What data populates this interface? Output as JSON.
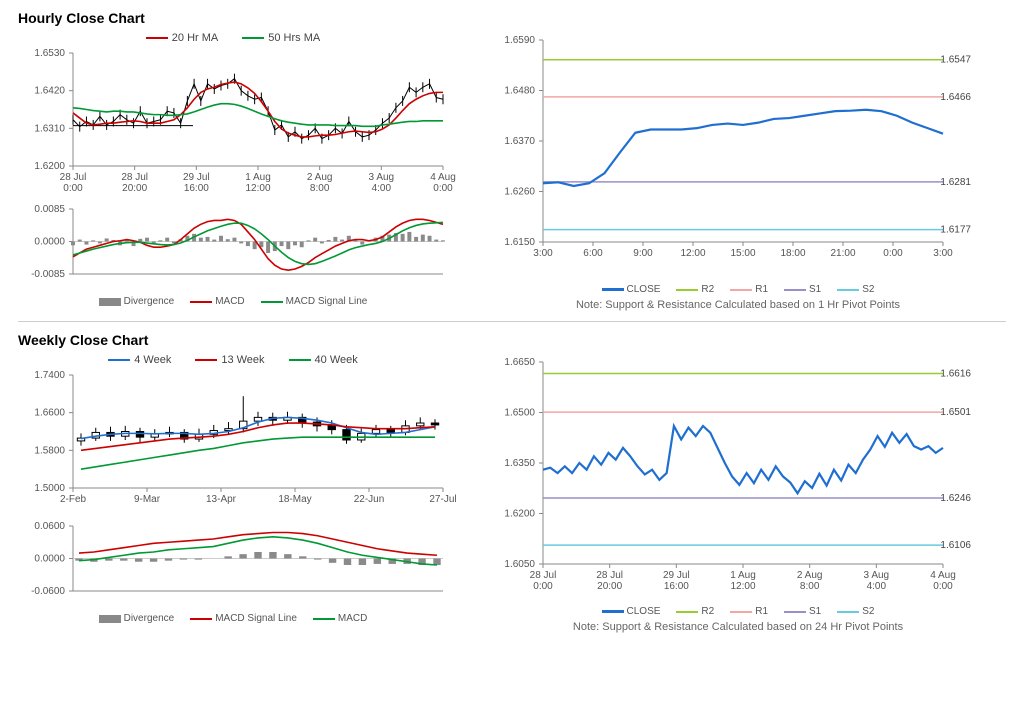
{
  "sections": {
    "hourly": {
      "title": "Hourly Close Chart"
    },
    "weekly": {
      "title": "Weekly Close Chart"
    }
  },
  "colors": {
    "axis": "#888888",
    "grid": "#e8e8e8",
    "price_black": "#000000",
    "ma_red": "#cc0000",
    "ma_green": "#009933",
    "ma_blue": "#1f6fd1",
    "divergence_bar": "#8a8a8a",
    "close_blue": "#1f6fd1",
    "r2_green": "#99cc33",
    "r1_pink": "#f2a6a6",
    "s1_purple": "#9a8fc9",
    "s2_cyan": "#66cce0"
  },
  "hourly_main": {
    "type": "line+candle",
    "ylim": [
      1.62,
      1.653
    ],
    "yticks": [
      1.62,
      1.631,
      1.642,
      1.653
    ],
    "xticks": [
      "28 Jul\n0:00",
      "28 Jul\n20:00",
      "29 Jul\n16:00",
      "1 Aug\n12:00",
      "2 Aug\n8:00",
      "3 Aug\n4:00",
      "4 Aug\n0:00"
    ],
    "legend": [
      {
        "label": "20 Hr MA",
        "color": "#cc0000"
      },
      {
        "label": "50 Hrs MA",
        "color": "#009933"
      }
    ],
    "price_y": [
      1.6335,
      1.6315,
      1.633,
      1.632,
      1.6345,
      1.632,
      1.633,
      1.635,
      1.6335,
      1.6325,
      1.636,
      1.6325,
      1.633,
      1.6335,
      1.636,
      1.6355,
      1.6325,
      1.639,
      1.644,
      1.639,
      1.644,
      1.6425,
      1.6435,
      1.644,
      1.6455,
      1.642,
      1.6405,
      1.6395,
      1.64,
      1.636,
      1.6305,
      1.632,
      1.6285,
      1.63,
      1.628,
      1.629,
      1.631,
      1.628,
      1.629,
      1.631,
      1.6295,
      1.633,
      1.63,
      1.6285,
      1.629,
      1.6305,
      1.6325,
      1.634,
      1.637,
      1.639,
      1.643,
      1.6415,
      1.643,
      1.644,
      1.64,
      1.6395
    ],
    "ma20_y": [
      1.6355,
      1.634,
      1.6325,
      1.632,
      1.6322,
      1.6325,
      1.6325,
      1.6328,
      1.633,
      1.6332,
      1.633,
      1.6325,
      1.6325,
      1.6325,
      1.633,
      1.6335,
      1.635,
      1.637,
      1.6395,
      1.6415,
      1.6425,
      1.643,
      1.6438,
      1.6442,
      1.6445,
      1.644,
      1.6428,
      1.6412,
      1.6388,
      1.636,
      1.633,
      1.6308,
      1.6296,
      1.629,
      1.6285,
      1.6285,
      1.6288,
      1.629,
      1.629,
      1.6292,
      1.6296,
      1.63,
      1.6302,
      1.63,
      1.6298,
      1.63,
      1.6308,
      1.632,
      1.634,
      1.6362,
      1.6382,
      1.6395,
      1.6405,
      1.6412,
      1.6415,
      1.6415
    ],
    "ma50_y": [
      1.637,
      1.6368,
      1.6365,
      1.6362,
      1.636,
      1.6358,
      1.636,
      1.636,
      1.6358,
      1.6358,
      1.6355,
      1.6352,
      1.635,
      1.635,
      1.6348,
      1.6348,
      1.635,
      1.6352,
      1.6358,
      1.6365,
      1.6372,
      1.6378,
      1.6382,
      1.6382,
      1.638,
      1.6375,
      1.6368,
      1.636,
      1.6352,
      1.6345,
      1.6338,
      1.6332,
      1.6328,
      1.6325,
      1.6322,
      1.632,
      1.632,
      1.632,
      1.632,
      1.6318,
      1.6318,
      1.6318,
      1.6318,
      1.6316,
      1.6316,
      1.6316,
      1.632,
      1.6322,
      1.6325,
      1.6328,
      1.633,
      1.633,
      1.6332,
      1.6332,
      1.6332,
      1.6332
    ],
    "hline_y": 1.6318
  },
  "hourly_macd": {
    "type": "macd",
    "ylim": [
      -0.0085,
      0.0085
    ],
    "yticks": [
      -0.0085,
      0.0,
      0.0085
    ],
    "legend": [
      {
        "label": "Divergence",
        "type": "bar",
        "color": "#8a8a8a"
      },
      {
        "label": "MACD",
        "type": "line",
        "color": "#cc0000"
      },
      {
        "label": "MACD Signal Line",
        "type": "line",
        "color": "#009933"
      }
    ],
    "div": [
      -0.001,
      0.0005,
      -0.0008,
      0.0003,
      -0.0005,
      0.0008,
      0.0004,
      -0.001,
      0.0006,
      -0.0012,
      0.0007,
      0.001,
      -0.0006,
      0.0003,
      0.001,
      -0.0005,
      0.0006,
      0.0015,
      0.002,
      0.001,
      0.0012,
      0.0005,
      0.0015,
      0.0006,
      0.001,
      -0.0005,
      -0.0012,
      -0.002,
      -0.0015,
      -0.003,
      -0.0025,
      -0.0012,
      -0.002,
      -0.001,
      -0.0015,
      0.0003,
      0.001,
      -0.0005,
      0.0004,
      0.0012,
      0.0005,
      0.0015,
      0.0003,
      -0.0008,
      0.0002,
      0.001,
      0.0015,
      0.0018,
      0.0022,
      0.002,
      0.0025,
      0.0012,
      0.0018,
      0.0015,
      0.0005,
      0.0003
    ],
    "macd": [
      -0.004,
      -0.003,
      -0.002,
      -0.0015,
      -0.001,
      -0.0005,
      0.0,
      0.0002,
      0.0005,
      0.0002,
      -0.0002,
      -0.001,
      -0.0015,
      -0.0015,
      -0.0012,
      -0.0008,
      0.0005,
      0.002,
      0.0035,
      0.0045,
      0.0052,
      0.0055,
      0.0055,
      0.0058,
      0.0055,
      0.0045,
      0.0025,
      0.0005,
      -0.002,
      -0.0045,
      -0.0062,
      -0.0072,
      -0.0075,
      -0.0072,
      -0.0065,
      -0.0055,
      -0.0042,
      -0.0032,
      -0.0022,
      -0.0012,
      -0.0005,
      0.0002,
      0.0005,
      0.0005,
      0.0002,
      0.0005,
      0.0012,
      0.0025,
      0.0038,
      0.0048,
      0.0055,
      0.0058,
      0.0058,
      0.0055,
      0.005,
      0.0045
    ],
    "signal": [
      -0.0035,
      -0.003,
      -0.0025,
      -0.002,
      -0.0016,
      -0.0012,
      -0.0008,
      -0.0005,
      -0.0003,
      -0.0002,
      -0.0002,
      -0.0004,
      -0.0006,
      -0.0008,
      -0.0009,
      -0.0008,
      -0.0004,
      0.0003,
      0.0012,
      0.002,
      0.0028,
      0.0034,
      0.004,
      0.0045,
      0.0048,
      0.0048,
      0.0042,
      0.0033,
      0.002,
      0.0005,
      -0.0012,
      -0.0028,
      -0.0042,
      -0.0052,
      -0.0058,
      -0.006,
      -0.0058,
      -0.0052,
      -0.0045,
      -0.0038,
      -0.003,
      -0.0022,
      -0.0016,
      -0.0012,
      -0.0008,
      -0.0005,
      0.0,
      0.0008,
      0.0018,
      0.0028,
      0.0036,
      0.0042,
      0.0046,
      0.0048,
      0.0049,
      0.005
    ]
  },
  "hourly_sr": {
    "type": "support-resistance",
    "ylim": [
      1.615,
      1.659
    ],
    "yticks": [
      1.615,
      1.626,
      1.637,
      1.648,
      1.659
    ],
    "xticks": [
      "3:00",
      "6:00",
      "9:00",
      "12:00",
      "15:00",
      "18:00",
      "21:00",
      "0:00",
      "3:00"
    ],
    "levels": {
      "R2": {
        "value": 1.6547,
        "color": "#99cc33"
      },
      "R1": {
        "value": 1.6466,
        "color": "#f2a6a6"
      },
      "S1": {
        "value": 1.6281,
        "color": "#9a8fc9"
      },
      "S2": {
        "value": 1.6177,
        "color": "#66cce0"
      }
    },
    "close_y": [
      1.6278,
      1.628,
      1.6272,
      1.6278,
      1.63,
      1.6345,
      1.6388,
      1.6395,
      1.6395,
      1.6395,
      1.6398,
      1.6405,
      1.6408,
      1.6405,
      1.641,
      1.6418,
      1.642,
      1.6425,
      1.643,
      1.6435,
      1.6436,
      1.6438,
      1.6435,
      1.6425,
      1.641,
      1.6398,
      1.6386
    ],
    "legend": [
      "CLOSE",
      "R2",
      "R1",
      "S1",
      "S2"
    ],
    "note": "Note: Support & Resistance Calculated based on 1 Hr Pivot Points"
  },
  "weekly_main": {
    "type": "candle+ma",
    "ylim": [
      1.5,
      1.74
    ],
    "yticks": [
      1.5,
      1.58,
      1.66,
      1.74
    ],
    "xticks": [
      "2-Feb",
      "9-Mar",
      "13-Apr",
      "18-May",
      "22-Jun",
      "27-Jul"
    ],
    "legend": [
      {
        "label": "4 Week",
        "color": "#1f6fd1"
      },
      {
        "label": "13 Week",
        "color": "#cc0000"
      },
      {
        "label": "40 Week",
        "color": "#009933"
      }
    ],
    "candles": [
      {
        "o": 1.6,
        "c": 1.606,
        "h": 1.616,
        "l": 1.59
      },
      {
        "o": 1.606,
        "c": 1.618,
        "h": 1.628,
        "l": 1.6
      },
      {
        "o": 1.618,
        "c": 1.61,
        "h": 1.63,
        "l": 1.6
      },
      {
        "o": 1.61,
        "c": 1.62,
        "h": 1.632,
        "l": 1.602
      },
      {
        "o": 1.62,
        "c": 1.608,
        "h": 1.628,
        "l": 1.596
      },
      {
        "o": 1.608,
        "c": 1.615,
        "h": 1.625,
        "l": 1.6
      },
      {
        "o": 1.615,
        "c": 1.618,
        "h": 1.63,
        "l": 1.608
      },
      {
        "o": 1.618,
        "c": 1.604,
        "h": 1.625,
        "l": 1.596
      },
      {
        "o": 1.604,
        "c": 1.614,
        "h": 1.626,
        "l": 1.598
      },
      {
        "o": 1.614,
        "c": 1.622,
        "h": 1.634,
        "l": 1.606
      },
      {
        "o": 1.622,
        "c": 1.626,
        "h": 1.64,
        "l": 1.614
      },
      {
        "o": 1.626,
        "c": 1.642,
        "h": 1.695,
        "l": 1.618
      },
      {
        "o": 1.642,
        "c": 1.65,
        "h": 1.662,
        "l": 1.632
      },
      {
        "o": 1.65,
        "c": 1.644,
        "h": 1.66,
        "l": 1.632
      },
      {
        "o": 1.644,
        "c": 1.65,
        "h": 1.662,
        "l": 1.636
      },
      {
        "o": 1.65,
        "c": 1.64,
        "h": 1.658,
        "l": 1.628
      },
      {
        "o": 1.64,
        "c": 1.632,
        "h": 1.65,
        "l": 1.62
      },
      {
        "o": 1.632,
        "c": 1.624,
        "h": 1.644,
        "l": 1.614
      },
      {
        "o": 1.624,
        "c": 1.602,
        "h": 1.634,
        "l": 1.594
      },
      {
        "o": 1.602,
        "c": 1.616,
        "h": 1.626,
        "l": 1.596
      },
      {
        "o": 1.616,
        "c": 1.624,
        "h": 1.634,
        "l": 1.608
      },
      {
        "o": 1.624,
        "c": 1.618,
        "h": 1.632,
        "l": 1.608
      },
      {
        "o": 1.618,
        "c": 1.632,
        "h": 1.644,
        "l": 1.612
      },
      {
        "o": 1.632,
        "c": 1.638,
        "h": 1.65,
        "l": 1.624
      },
      {
        "o": 1.638,
        "c": 1.634,
        "h": 1.646,
        "l": 1.624
      }
    ],
    "ma4": [
      1.605,
      1.61,
      1.614,
      1.616,
      1.616,
      1.615,
      1.616,
      1.616,
      1.614,
      1.616,
      1.62,
      1.628,
      1.64,
      1.648,
      1.65,
      1.648,
      1.644,
      1.638,
      1.628,
      1.618,
      1.614,
      1.616,
      1.618,
      1.624,
      1.63
    ],
    "ma13": [
      1.58,
      1.584,
      1.588,
      1.592,
      1.596,
      1.6,
      1.604,
      1.606,
      1.608,
      1.61,
      1.614,
      1.62,
      1.628,
      1.634,
      1.638,
      1.638,
      1.636,
      1.634,
      1.63,
      1.628,
      1.626,
      1.626,
      1.626,
      1.628,
      1.63
    ],
    "ma40": [
      1.54,
      1.545,
      1.55,
      1.555,
      1.56,
      1.565,
      1.57,
      1.575,
      1.58,
      1.584,
      1.59,
      1.596,
      1.6,
      1.604,
      1.606,
      1.608,
      1.608,
      1.608,
      1.608,
      1.608,
      1.608,
      1.608,
      1.608,
      1.608,
      1.608
    ]
  },
  "weekly_macd": {
    "type": "macd",
    "ylim": [
      -0.06,
      0.06
    ],
    "yticks": [
      -0.06,
      0.0,
      0.06
    ],
    "legend": [
      {
        "label": "Divergence",
        "type": "bar",
        "color": "#8a8a8a"
      },
      {
        "label": "MACD Signal Line",
        "type": "line",
        "color": "#cc0000"
      },
      {
        "label": "MACD",
        "type": "line",
        "color": "#009933"
      }
    ],
    "div": [
      -0.004,
      -0.006,
      -0.004,
      -0.004,
      -0.006,
      -0.006,
      -0.004,
      -0.002,
      -0.002,
      0.0,
      0.004,
      0.008,
      0.012,
      0.012,
      0.008,
      0.004,
      -0.002,
      -0.008,
      -0.012,
      -0.012,
      -0.01,
      -0.01,
      -0.01,
      -0.012,
      -0.012
    ],
    "macd": [
      -0.004,
      -0.002,
      0.002,
      0.006,
      0.01,
      0.012,
      0.016,
      0.018,
      0.02,
      0.022,
      0.028,
      0.034,
      0.038,
      0.04,
      0.038,
      0.034,
      0.028,
      0.02,
      0.012,
      0.006,
      0.002,
      -0.002,
      -0.006,
      -0.01,
      -0.012
    ],
    "signal": [
      0.01,
      0.012,
      0.016,
      0.02,
      0.024,
      0.028,
      0.03,
      0.032,
      0.034,
      0.036,
      0.04,
      0.044,
      0.046,
      0.048,
      0.048,
      0.046,
      0.042,
      0.036,
      0.03,
      0.024,
      0.018,
      0.014,
      0.01,
      0.008,
      0.006
    ]
  },
  "weekly_sr": {
    "type": "support-resistance",
    "ylim": [
      1.605,
      1.665
    ],
    "yticks": [
      1.605,
      1.62,
      1.635,
      1.65,
      1.665
    ],
    "xticks": [
      "28 Jul\n0:00",
      "28 Jul\n20:00",
      "29 Jul\n16:00",
      "1 Aug\n12:00",
      "2 Aug\n8:00",
      "3 Aug\n4:00",
      "4 Aug\n0:00"
    ],
    "levels": {
      "R2": {
        "value": 1.6616,
        "color": "#99cc33"
      },
      "R1": {
        "value": 1.6501,
        "color": "#f2a6a6"
      },
      "S1": {
        "value": 1.6246,
        "color": "#9a8fc9"
      },
      "S2": {
        "value": 1.6106,
        "color": "#66cce0"
      }
    },
    "close_y": [
      1.633,
      1.6336,
      1.632,
      1.634,
      1.632,
      1.635,
      1.633,
      1.637,
      1.6345,
      1.638,
      1.636,
      1.6395,
      1.637,
      1.634,
      1.6316,
      1.633,
      1.63,
      1.632,
      1.646,
      1.642,
      1.6455,
      1.643,
      1.646,
      1.644,
      1.6395,
      1.635,
      1.631,
      1.6285,
      1.632,
      1.629,
      1.633,
      1.63,
      1.634,
      1.631,
      1.6292,
      1.626,
      1.6296,
      1.6276,
      1.6318,
      1.6283,
      1.633,
      1.6298,
      1.6345,
      1.632,
      1.636,
      1.639,
      1.643,
      1.6398,
      1.644,
      1.641,
      1.6436,
      1.64,
      1.639,
      1.64,
      1.638,
      1.6395
    ],
    "legend": [
      "CLOSE",
      "R2",
      "R1",
      "S1",
      "S2"
    ],
    "note": "Note: Support & Resistance Calculated based on 24 Hr Pivot Points"
  }
}
